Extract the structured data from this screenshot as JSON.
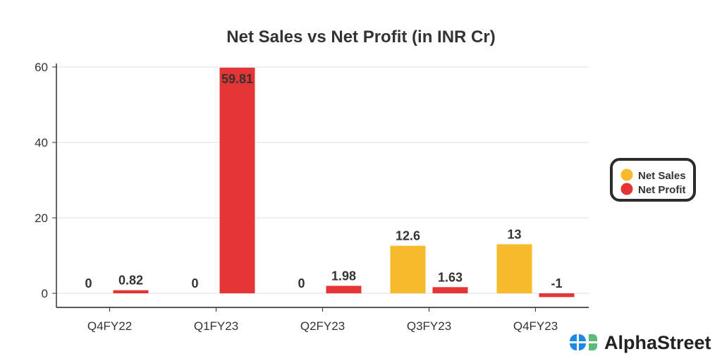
{
  "chart_data": {
    "type": "bar",
    "title": "Net Sales vs Net Profit (in INR Cr)",
    "xlabel": "",
    "ylabel": "",
    "categories": [
      "Q4FY22",
      "Q1FY23",
      "Q2FY23",
      "Q3FY23",
      "Q4FY23"
    ],
    "series": [
      {
        "name": "Net Sales",
        "color": "#F6BA2A",
        "values": [
          0,
          0,
          0,
          12.6,
          13
        ],
        "labels": [
          "0",
          "0",
          "0",
          "12.6",
          "13"
        ]
      },
      {
        "name": "Net Profit",
        "color": "#E53434",
        "values": [
          0.82,
          59.81,
          1.98,
          1.63,
          -1
        ],
        "labels": [
          "0.82",
          "59.81",
          "1.98",
          "1.63",
          "-1"
        ]
      }
    ],
    "ylim": [
      -3.5,
      60
    ],
    "yticks": [
      0,
      20,
      40,
      60
    ],
    "grid": true,
    "legend": "right"
  },
  "branding": {
    "logo_text": "AlphaStreet"
  }
}
